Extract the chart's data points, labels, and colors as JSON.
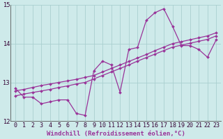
{
  "x_values": [
    0,
    1,
    2,
    3,
    4,
    5,
    6,
    7,
    8,
    9,
    10,
    11,
    12,
    13,
    14,
    15,
    16,
    17,
    18,
    19,
    20,
    21,
    22,
    23
  ],
  "line1": [
    12.85,
    12.62,
    12.62,
    12.45,
    12.5,
    12.55,
    12.55,
    12.2,
    12.15,
    13.3,
    13.55,
    13.45,
    12.75,
    13.85,
    13.9,
    14.6,
    14.8,
    14.9,
    14.45,
    13.95,
    13.95,
    13.85,
    13.65,
    14.1
  ],
  "line2": [
    12.78,
    12.82,
    12.87,
    12.92,
    12.96,
    13.0,
    13.04,
    13.08,
    13.13,
    13.18,
    13.27,
    13.36,
    13.45,
    13.54,
    13.63,
    13.72,
    13.82,
    13.91,
    14.0,
    14.05,
    14.1,
    14.15,
    14.2,
    14.28
  ],
  "line3": [
    12.65,
    12.7,
    12.74,
    12.78,
    12.82,
    12.87,
    12.91,
    12.96,
    13.0,
    13.09,
    13.18,
    13.27,
    13.36,
    13.45,
    13.55,
    13.64,
    13.73,
    13.82,
    13.91,
    13.96,
    14.01,
    14.06,
    14.11,
    14.2
  ],
  "xlim": [
    -0.5,
    23.5
  ],
  "ylim": [
    12,
    15
  ],
  "yticks": [
    12,
    13,
    14,
    15
  ],
  "xtick_labels": [
    "0",
    "1",
    "2",
    "3",
    "4",
    "5",
    "6",
    "7",
    "8",
    "9",
    "10",
    "11",
    "12",
    "13",
    "14",
    "15",
    "16",
    "17",
    "18",
    "19",
    "20",
    "21",
    "22",
    "23"
  ],
  "line_color": "#993399",
  "bg_color": "#ceeaea",
  "grid_color": "#aacfcf",
  "xlabel": "Windchill (Refroidissement éolien,°C)",
  "label_fontsize": 6.5,
  "tick_fontsize": 6.0,
  "marker_size": 2.0,
  "line_width": 0.9
}
